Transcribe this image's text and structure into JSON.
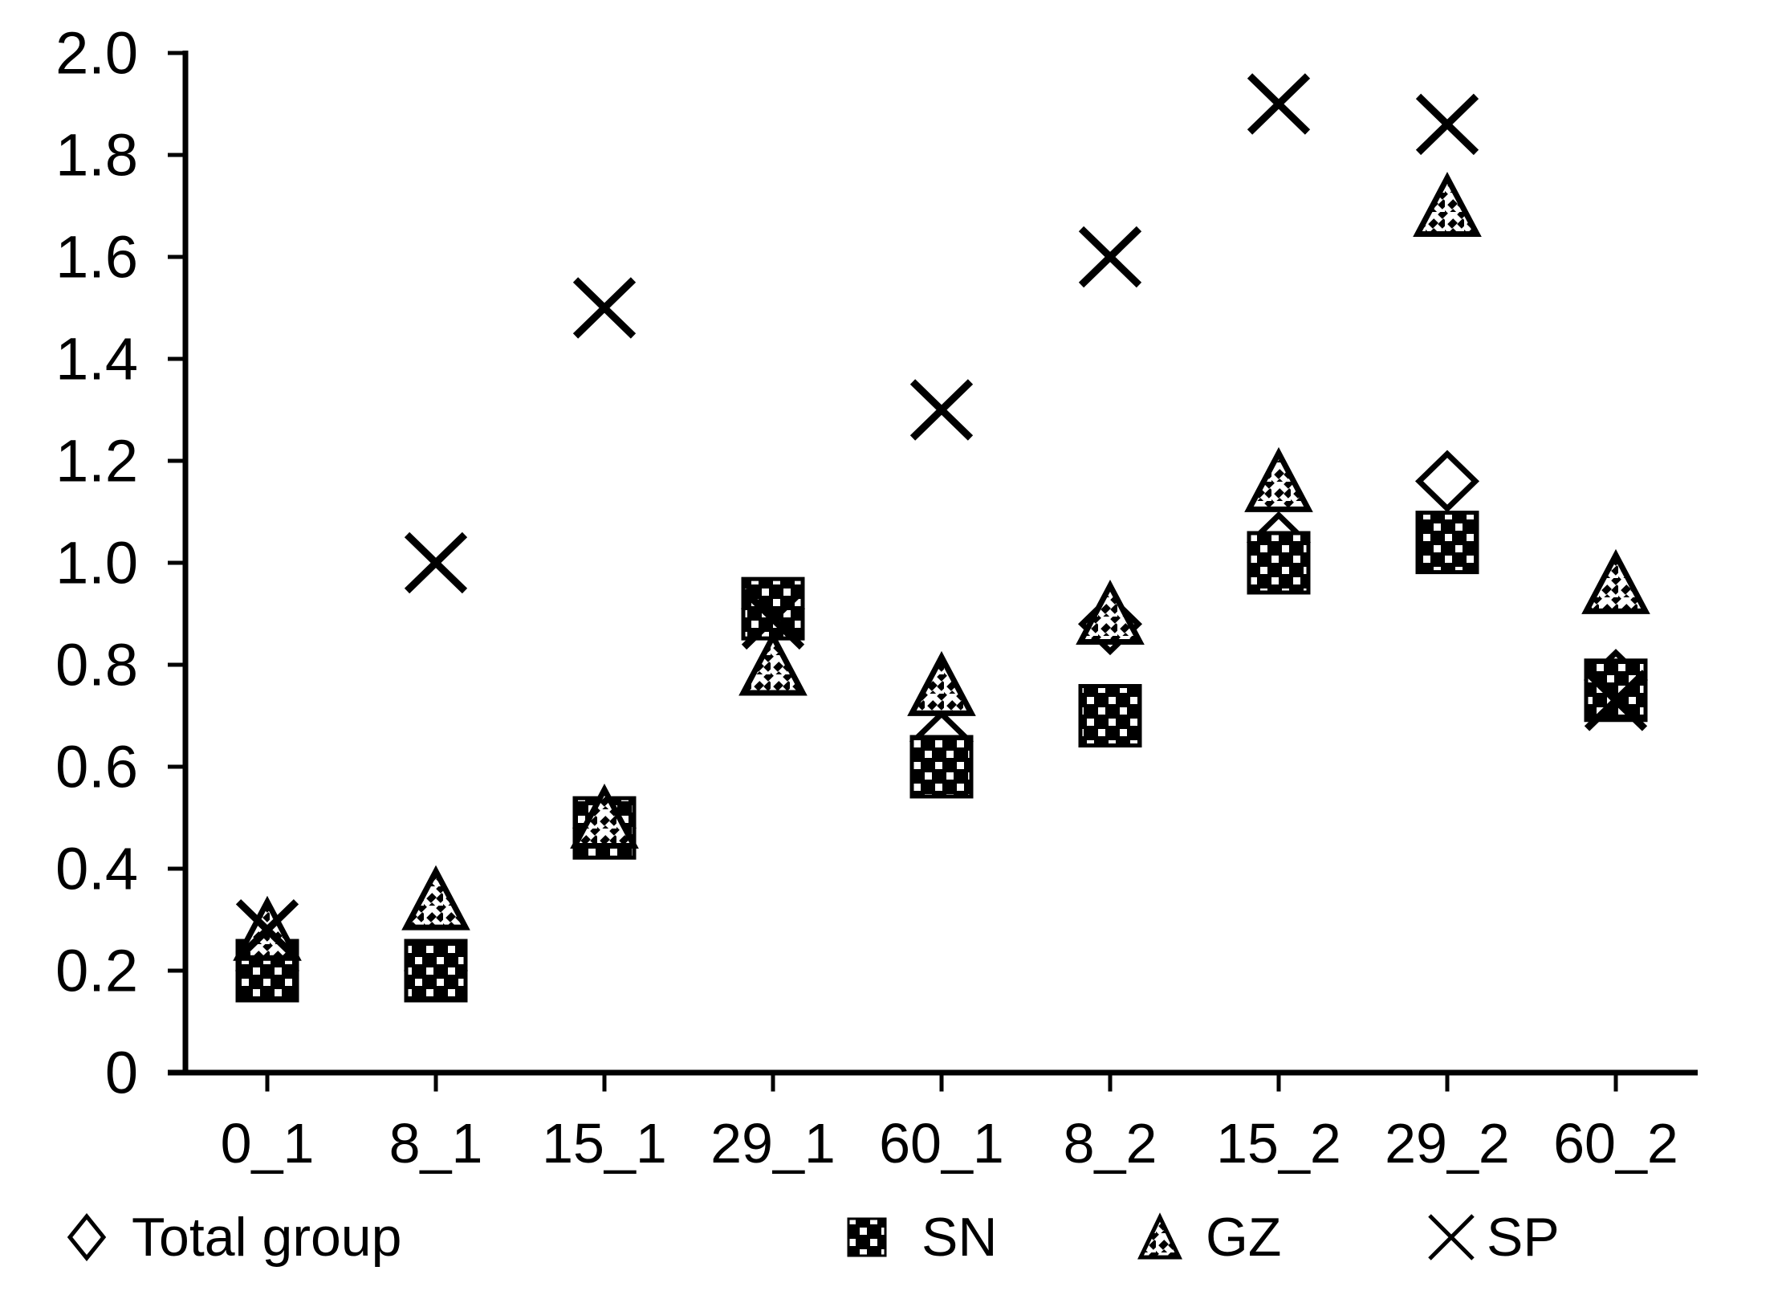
{
  "chart_data": {
    "type": "scatter",
    "title": "",
    "xlabel": "",
    "ylabel": "",
    "categories": [
      "0_1",
      "8_1",
      "15_1",
      "29_1",
      "60_1",
      "8_2",
      "15_2",
      "29_2",
      "60_2"
    ],
    "series": [
      {
        "name": "Total group",
        "marker": "open-diamond",
        "values": [
          0.2,
          0.2,
          0.48,
          0.91,
          0.65,
          0.88,
          1.04,
          1.16,
          0.77
        ]
      },
      {
        "name": "SN",
        "marker": "black-square-white-dots",
        "values": [
          0.2,
          0.2,
          0.48,
          0.91,
          0.6,
          0.7,
          1.0,
          1.04,
          0.75
        ]
      },
      {
        "name": "GZ",
        "marker": "hatched-triangle",
        "values": [
          0.28,
          0.34,
          0.5,
          0.8,
          0.76,
          0.9,
          1.16,
          1.7,
          0.96
        ]
      },
      {
        "name": "SP",
        "marker": "x-cross",
        "values": [
          0.28,
          1.0,
          1.5,
          0.89,
          1.3,
          1.6,
          1.9,
          1.86,
          0.73
        ]
      }
    ],
    "ylim": [
      0,
      2.0
    ],
    "yticks": [
      0,
      0.2,
      0.4,
      0.6,
      0.8,
      1.0,
      1.2,
      1.4,
      1.6,
      1.8,
      2.0
    ],
    "ytick_labels": [
      "0",
      "0.2",
      "0.4",
      "0.6",
      "0.8",
      "1.0",
      "1.2",
      "1.4",
      "1.6",
      "1.8",
      "2.0"
    ],
    "grid": false,
    "legend_position": "bottom",
    "colors": {
      "marker": "#000000",
      "background": "#ffffff"
    }
  },
  "legend": {
    "items": [
      {
        "label": "Total group",
        "marker": "open-diamond"
      },
      {
        "label": "SN",
        "marker": "black-square-white-dots"
      },
      {
        "label": "GZ",
        "marker": "hatched-triangle"
      },
      {
        "label": "SP",
        "marker": "x-cross"
      }
    ]
  }
}
